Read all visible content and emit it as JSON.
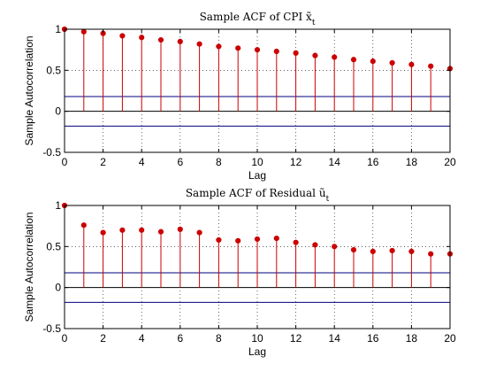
{
  "chart_data": [
    {
      "type": "stem",
      "title": "Sample ACF of CPI x̃",
      "title_subscript": "t",
      "xlabel": "Lag",
      "ylabel": "Sample Autocorrelation",
      "xlim": [
        0,
        20
      ],
      "ylim": [
        -0.5,
        1
      ],
      "xticks": [
        0,
        2,
        4,
        6,
        8,
        10,
        12,
        14,
        16,
        18,
        20
      ],
      "yticks": [
        -0.5,
        0,
        0.5,
        1
      ],
      "ytick_labels": [
        "-0.5",
        "0",
        "0.5",
        "1"
      ],
      "grid": "dotted",
      "confidence_bounds": [
        0.18,
        -0.18
      ],
      "lags": [
        0,
        1,
        2,
        3,
        4,
        5,
        6,
        7,
        8,
        9,
        10,
        11,
        12,
        13,
        14,
        15,
        16,
        17,
        18,
        19,
        20
      ],
      "values": [
        1.0,
        0.97,
        0.95,
        0.92,
        0.9,
        0.87,
        0.85,
        0.82,
        0.79,
        0.77,
        0.75,
        0.73,
        0.71,
        0.68,
        0.66,
        0.63,
        0.61,
        0.59,
        0.57,
        0.55,
        0.52
      ],
      "stem_color": "#cc0000",
      "bound_color": "#000080"
    },
    {
      "type": "stem",
      "title": "Sample ACF of Residual ũ",
      "title_subscript": "t",
      "xlabel": "Lag",
      "ylabel": "Sample Autocorrelation",
      "xlim": [
        0,
        20
      ],
      "ylim": [
        -0.5,
        1
      ],
      "xticks": [
        0,
        2,
        4,
        6,
        8,
        10,
        12,
        14,
        16,
        18,
        20
      ],
      "yticks": [
        -0.5,
        0,
        0.5,
        1
      ],
      "ytick_labels": [
        "-0.5",
        "0",
        "0.5",
        "1"
      ],
      "grid": "dotted",
      "confidence_bounds": [
        0.18,
        -0.18
      ],
      "lags": [
        0,
        1,
        2,
        3,
        4,
        5,
        6,
        7,
        8,
        9,
        10,
        11,
        12,
        13,
        14,
        15,
        16,
        17,
        18,
        19,
        20
      ],
      "values": [
        1.0,
        0.76,
        0.67,
        0.7,
        0.7,
        0.68,
        0.71,
        0.67,
        0.58,
        0.57,
        0.59,
        0.6,
        0.55,
        0.52,
        0.5,
        0.46,
        0.44,
        0.45,
        0.44,
        0.41,
        0.41
      ],
      "stem_color": "#cc0000",
      "bound_color": "#000080"
    }
  ]
}
